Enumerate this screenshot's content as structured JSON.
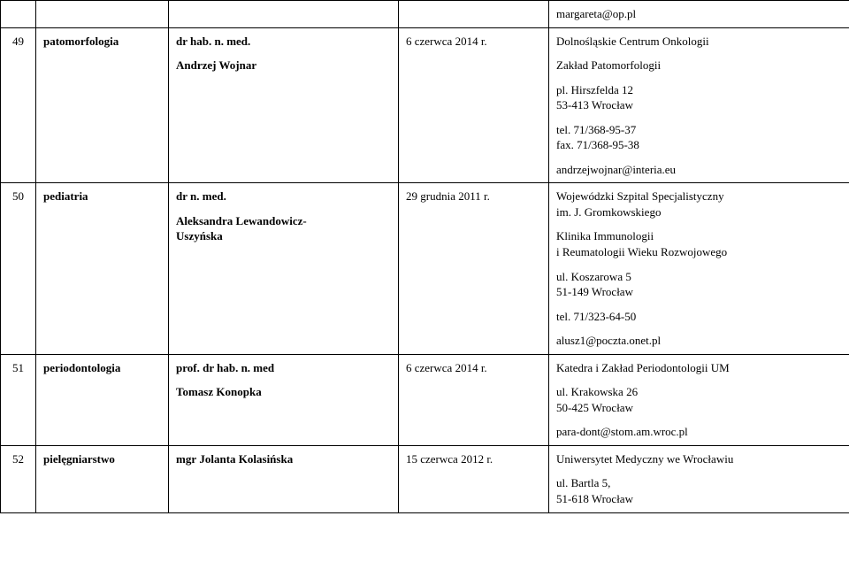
{
  "rows": [
    {
      "num": "",
      "spec": "",
      "doc": "",
      "date": "",
      "contact_lines": [
        "margareta@op.pl"
      ]
    },
    {
      "num": "49",
      "spec": "patomorfologia",
      "doc_title": "dr hab. n. med.",
      "doc_name": "Andrzej Wojnar",
      "date": "6 czerwca 2014 r.",
      "inst": "Dolnośląskie Centrum Onkologii",
      "dept": "Zakład Patomorfologii",
      "addr1": "pl. Hirszfelda 12",
      "addr2": "53-413 Wrocław",
      "tel": "tel. 71/368-95-37",
      "fax": "fax. 71/368-95-38",
      "email": "andrzejwojnar@interia.eu"
    },
    {
      "num": "50",
      "spec": "pediatria",
      "doc_title": "dr n. med.",
      "doc_name1": "Aleksandra Lewandowicz-",
      "doc_name2": "Uszyńska",
      "date": "29 grudnia 2011 r.",
      "inst1": "Wojewódzki Szpital Specjalistyczny",
      "inst2": "im. J. Gromkowskiego",
      "dept1": "Klinika Immunologii",
      "dept2": "i Reumatologii Wieku Rozwojowego",
      "addr1": "ul. Koszarowa 5",
      "addr2": "51-149 Wrocław",
      "tel": "tel. 71/323-64-50",
      "email": "alusz1@poczta.onet.pl"
    },
    {
      "num": "51",
      "spec": "periodontologia",
      "doc_title": "prof. dr hab. n. med",
      "doc_name": "Tomasz Konopka",
      "date": "6 czerwca 2014 r.",
      "inst": "Katedra i Zakład Periodontologii UM",
      "addr1": "ul. Krakowska 26",
      "addr2": "50-425 Wrocław",
      "email": "para-dont@stom.am.wroc.pl"
    },
    {
      "num": "52",
      "spec": "pielęgniarstwo",
      "doc_title": "mgr",
      "doc_name": "Jolanta Kolasińska",
      "date": "15 czerwca 2012 r.",
      "inst": "Uniwersytet Medyczny we Wrocławiu",
      "addr1": "ul. Bartla 5,",
      "addr2": "51-618 Wrocław"
    }
  ]
}
